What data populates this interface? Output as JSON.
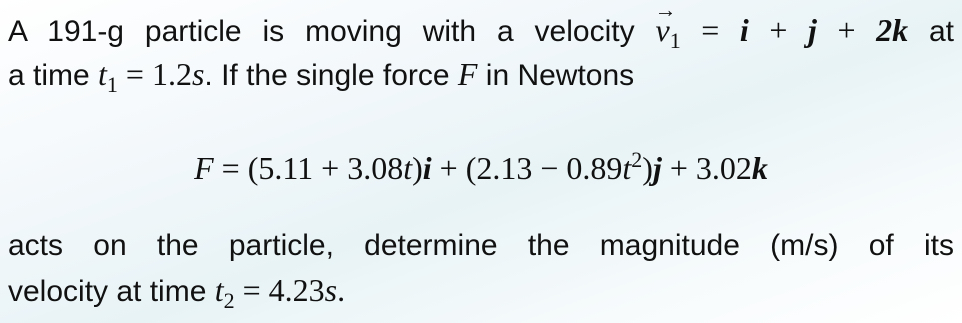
{
  "lines": [
    {
      "align": "justify",
      "segments": [
        {
          "k": "txt",
          "t": "A 191-g particle is moving with a velocity "
        },
        {
          "k": "vec",
          "t": "v"
        },
        {
          "k": "sub",
          "t": "1"
        },
        {
          "k": "rm",
          "t": " = "
        },
        {
          "k": "bf",
          "t": "i"
        },
        {
          "k": "rm",
          "t": " + "
        },
        {
          "k": "bf",
          "t": "j"
        },
        {
          "k": "rm",
          "t": " + "
        },
        {
          "k": "bf",
          "t": "2k"
        },
        {
          "k": "txt",
          "t": " at"
        }
      ]
    },
    {
      "align": "left",
      "segments": [
        {
          "k": "txt",
          "t": "a time "
        },
        {
          "k": "it",
          "t": "t"
        },
        {
          "k": "sub",
          "t": "1"
        },
        {
          "k": "rm",
          "t": " = 1.2"
        },
        {
          "k": "it",
          "t": "s"
        },
        {
          "k": "txt",
          "t": ". If the single force "
        },
        {
          "k": "it",
          "t": "F"
        },
        {
          "k": "txt",
          "t": " in Newtons"
        }
      ]
    },
    {
      "align": "center",
      "segments": [
        {
          "k": "it",
          "t": "F"
        },
        {
          "k": "rm",
          "t": " = (5.11 + 3.08"
        },
        {
          "k": "it",
          "t": "t"
        },
        {
          "k": "rm",
          "t": ")"
        },
        {
          "k": "bf",
          "t": "i"
        },
        {
          "k": "rm",
          "t": " + (2.13 − 0.89"
        },
        {
          "k": "it",
          "t": "t"
        },
        {
          "k": "sup",
          "t": "2"
        },
        {
          "k": "rm",
          "t": ")"
        },
        {
          "k": "bf",
          "t": "j"
        },
        {
          "k": "rm",
          "t": " + 3.02"
        },
        {
          "k": "bf",
          "t": "k"
        }
      ]
    },
    {
      "align": "justify",
      "segments": [
        {
          "k": "txt",
          "t": "acts on the particle, determine the magnitude (m/s) of its"
        }
      ]
    },
    {
      "align": "left",
      "segments": [
        {
          "k": "txt",
          "t": "velocity at time "
        },
        {
          "k": "it",
          "t": "t"
        },
        {
          "k": "sub",
          "t": "2"
        },
        {
          "k": "rm",
          "t": " = 4.23"
        },
        {
          "k": "it",
          "t": "s"
        },
        {
          "k": "rm",
          "t": "."
        }
      ]
    }
  ]
}
